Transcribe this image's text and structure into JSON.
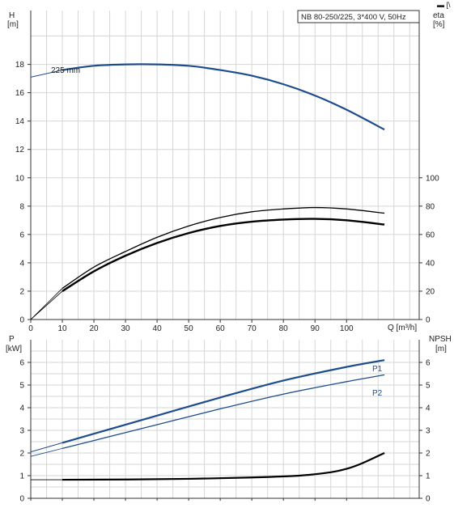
{
  "header": {
    "title": "NB 80-250/225, 3*400 V, 50Hz",
    "corner_glyph": "▬ [\\"
  },
  "upper_chart": {
    "left_axis": {
      "label_top": "H",
      "label_unit": "[m]"
    },
    "right_axis": {
      "label_top": "eta",
      "label_unit": "[%]"
    },
    "x_axis": {
      "label": "Q [m³/h]"
    },
    "curve_label": "225 mm"
  },
  "lower_chart": {
    "left_axis": {
      "label_top": "P",
      "label_unit": "[kW]"
    },
    "right_axis": {
      "label_top": "NPSH",
      "label_unit": "[m]"
    },
    "p1_label": "P1",
    "p2_label": "P2"
  },
  "colors": {
    "head_curve": "#1e4d8c",
    "power_curves": "#1e4d8c",
    "efficiency_curves": "#000000",
    "npsh_curve": "#000000",
    "grid": "#d6d6d6"
  },
  "chart_data": [
    {
      "type": "line",
      "title": "NB 80-250/225, 3*400 V, 50Hz",
      "xlabel": "Q [m³/h]",
      "ylabel": "H [m]",
      "y2label": "eta [%]",
      "xlim": [
        0,
        123
      ],
      "ylim": [
        0,
        21.8
      ],
      "y2lim": [
        0,
        100
      ],
      "xticks": [
        0,
        10,
        20,
        30,
        40,
        50,
        60,
        70,
        80,
        90,
        100
      ],
      "yticks": [
        0,
        2,
        4,
        6,
        8,
        10,
        12,
        14,
        16,
        18
      ],
      "y2ticks": [
        0,
        20,
        40,
        60,
        80,
        100
      ],
      "grid": true,
      "series": [
        {
          "name": "225 mm",
          "axis": "left",
          "x": [
            0,
            10,
            20,
            30,
            40,
            50,
            60,
            70,
            80,
            90,
            100,
            112
          ],
          "y": [
            17.1,
            17.6,
            17.9,
            18.0,
            18.0,
            17.9,
            17.6,
            17.2,
            16.6,
            15.8,
            14.8,
            13.4
          ]
        },
        {
          "name": "eta upper",
          "axis": "right",
          "x": [
            0,
            10,
            20,
            30,
            40,
            50,
            60,
            70,
            80,
            90,
            100,
            112
          ],
          "y": [
            0,
            22,
            37,
            48,
            58,
            66,
            72,
            76,
            78,
            79,
            78,
            75
          ]
        },
        {
          "name": "eta",
          "axis": "right",
          "x": [
            10,
            20,
            30,
            40,
            50,
            60,
            70,
            80,
            90,
            100,
            112
          ],
          "y": [
            20,
            34,
            45,
            54,
            61,
            66,
            69,
            70.5,
            71,
            70,
            67
          ]
        }
      ]
    },
    {
      "type": "line",
      "xlabel": "",
      "ylabel": "P [kW]",
      "y2label": "NPSH [m]",
      "xlim": [
        0,
        123
      ],
      "ylim": [
        0,
        7
      ],
      "y2lim": [
        0,
        7
      ],
      "yticks": [
        0,
        1,
        2,
        3,
        4,
        5,
        6
      ],
      "y2ticks": [
        0,
        1,
        2,
        3,
        4,
        5,
        6
      ],
      "grid": true,
      "series": [
        {
          "name": "P1",
          "axis": "left",
          "x": [
            0,
            10,
            20,
            40,
            60,
            80,
            100,
            112
          ],
          "y": [
            2.05,
            2.45,
            2.85,
            3.65,
            4.45,
            5.2,
            5.8,
            6.1
          ]
        },
        {
          "name": "P2",
          "axis": "left",
          "x": [
            0,
            10,
            20,
            40,
            60,
            80,
            100,
            112
          ],
          "y": [
            1.85,
            2.2,
            2.55,
            3.25,
            3.95,
            4.6,
            5.15,
            5.45
          ]
        },
        {
          "name": "NPSH",
          "axis": "right",
          "x": [
            0,
            10,
            30,
            50,
            70,
            85,
            95,
            100,
            105,
            112
          ],
          "y": [
            0.82,
            0.82,
            0.83,
            0.86,
            0.92,
            1.0,
            1.15,
            1.3,
            1.55,
            2.0
          ]
        }
      ]
    }
  ]
}
